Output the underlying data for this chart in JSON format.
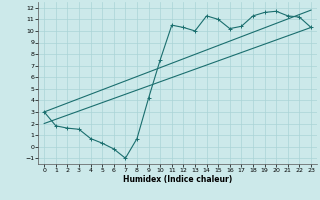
{
  "xlabel": "Humidex (Indice chaleur)",
  "ylabel": "",
  "bg_color": "#cce9ea",
  "grid_color": "#aad4d6",
  "line_color": "#1a6e6e",
  "x_ticks": [
    0,
    1,
    2,
    3,
    4,
    5,
    6,
    7,
    8,
    9,
    10,
    11,
    12,
    13,
    14,
    15,
    16,
    17,
    18,
    19,
    20,
    21,
    22,
    23
  ],
  "y_ticks": [
    -1,
    0,
    1,
    2,
    3,
    4,
    5,
    6,
    7,
    8,
    9,
    10,
    11,
    12
  ],
  "xlim": [
    -0.5,
    23.5
  ],
  "ylim": [
    -1.5,
    12.5
  ],
  "line1_x": [
    0,
    1,
    2,
    3,
    4,
    5,
    6,
    7,
    8,
    9,
    10,
    11,
    12,
    13,
    14,
    15,
    16,
    17,
    18,
    19,
    20,
    21,
    22,
    23
  ],
  "line1_y": [
    3.0,
    1.8,
    1.6,
    1.5,
    0.7,
    0.3,
    -0.2,
    -1.0,
    0.7,
    4.2,
    7.5,
    10.5,
    10.3,
    10.0,
    11.3,
    11.0,
    10.2,
    10.4,
    11.3,
    11.6,
    11.7,
    11.3,
    11.2,
    10.3
  ],
  "line2_x": [
    0,
    23
  ],
  "line2_y": [
    2.0,
    10.3
  ],
  "line3_x": [
    0,
    23
  ],
  "line3_y": [
    3.0,
    11.8
  ]
}
